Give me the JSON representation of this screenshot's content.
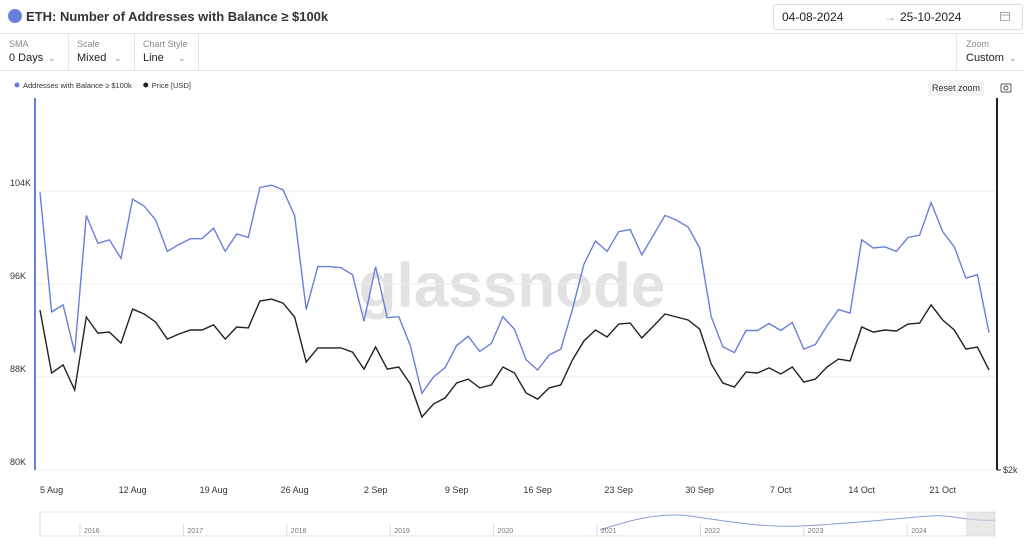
{
  "ui": {
    "date_start": "04-08-2024",
    "date_arrow": "→",
    "date_end": "25-10-2024",
    "controls": [
      {
        "label": "SMA",
        "value": "0 Days"
      },
      {
        "label": "Scale",
        "value": "Mixed"
      },
      {
        "label": "Chart Style",
        "value": "Line"
      }
    ],
    "zoom": {
      "label": "Zoom",
      "value": "Custom"
    },
    "reset_zoom": "Reset zoom",
    "watermark": "glassnode",
    "navigator_years": [
      "2016",
      "2017",
      "2018",
      "2019",
      "2020",
      "2021",
      "2022",
      "2023",
      "2024"
    ]
  },
  "chart_data": {
    "type": "line",
    "title": "ETH: Number of Addresses with Balance ≥ $100k",
    "categories": [
      null,
      "5 Aug",
      null,
      null,
      null,
      null,
      null,
      null,
      "12 Aug",
      null,
      null,
      null,
      null,
      null,
      null,
      "19 Aug",
      null,
      null,
      null,
      null,
      null,
      null,
      "26 Aug",
      null,
      null,
      null,
      null,
      null,
      null,
      "2 Sep",
      null,
      null,
      null,
      null,
      null,
      null,
      "9 Sep",
      null,
      null,
      null,
      null,
      null,
      null,
      "16 Sep",
      null,
      null,
      null,
      null,
      null,
      null,
      "23 Sep",
      null,
      null,
      null,
      null,
      null,
      null,
      "30 Sep",
      null,
      null,
      null,
      null,
      null,
      null,
      "7 Oct",
      null,
      null,
      null,
      null,
      null,
      null,
      "14 Oct",
      null,
      null,
      null,
      null,
      null,
      null,
      "21 Oct",
      null,
      null,
      null,
      null
    ],
    "series": [
      {
        "name": "Addresses with Balance ≥ $100k",
        "color": "#6a7fd8",
        "values": [
          103900,
          93600,
          94200,
          90100,
          101900,
          99500,
          99800,
          98200,
          103300,
          102700,
          101500,
          98800,
          99400,
          99900,
          99900,
          100800,
          98800,
          100300,
          100000,
          104300,
          104500,
          104100,
          101900,
          93800,
          97500,
          97500,
          97400,
          96800,
          92800,
          97500,
          93100,
          93200,
          90700,
          86600,
          88000,
          88800,
          90700,
          91500,
          90200,
          90900,
          93200,
          92100,
          89500,
          88600,
          89900,
          90400,
          93800,
          97700,
          99700,
          98800,
          100500,
          100700,
          98500,
          100200,
          101900,
          101500,
          100900,
          99100,
          93200,
          90600,
          90100,
          92000,
          92000,
          92600,
          92000,
          92700,
          90400,
          90800,
          92400,
          93800,
          93500,
          99800,
          99100,
          99200,
          98800,
          100000,
          100200,
          103000,
          100500,
          99200,
          96500,
          96800,
          91800
        ]
      },
      {
        "name": "Price [USD]",
        "color": "#222222",
        "axis": "y2",
        "values": [
          2688,
          2417,
          2452,
          2344,
          2658,
          2589,
          2593,
          2546,
          2692,
          2671,
          2636,
          2563,
          2585,
          2602,
          2602,
          2624,
          2563,
          2615,
          2611,
          2727,
          2735,
          2718,
          2658,
          2464,
          2525,
          2525,
          2525,
          2507,
          2434,
          2529,
          2434,
          2443,
          2370,
          2228,
          2284,
          2310,
          2374,
          2391,
          2353,
          2366,
          2443,
          2417,
          2331,
          2305,
          2353,
          2366,
          2473,
          2555,
          2602,
          2572,
          2628,
          2632,
          2568,
          2619,
          2671,
          2658,
          2645,
          2606,
          2456,
          2374,
          2357,
          2421,
          2417,
          2439,
          2413,
          2443,
          2378,
          2391,
          2443,
          2477,
          2469,
          2615,
          2593,
          2602,
          2598,
          2628,
          2632,
          2710,
          2645,
          2602,
          2520,
          2529,
          2430
        ]
      }
    ],
    "ylim": [
      80000,
      112000
    ],
    "yticks": [
      {
        "value": 80000,
        "label": "80K"
      },
      {
        "value": 88000,
        "label": "88K"
      },
      {
        "value": 96000,
        "label": "96K"
      },
      {
        "value": 104000,
        "label": "104K"
      }
    ],
    "y2lim": [
      2000,
      3600
    ],
    "y2ticks": [
      {
        "value": 2000,
        "label": "$2k"
      }
    ],
    "grid": true
  }
}
